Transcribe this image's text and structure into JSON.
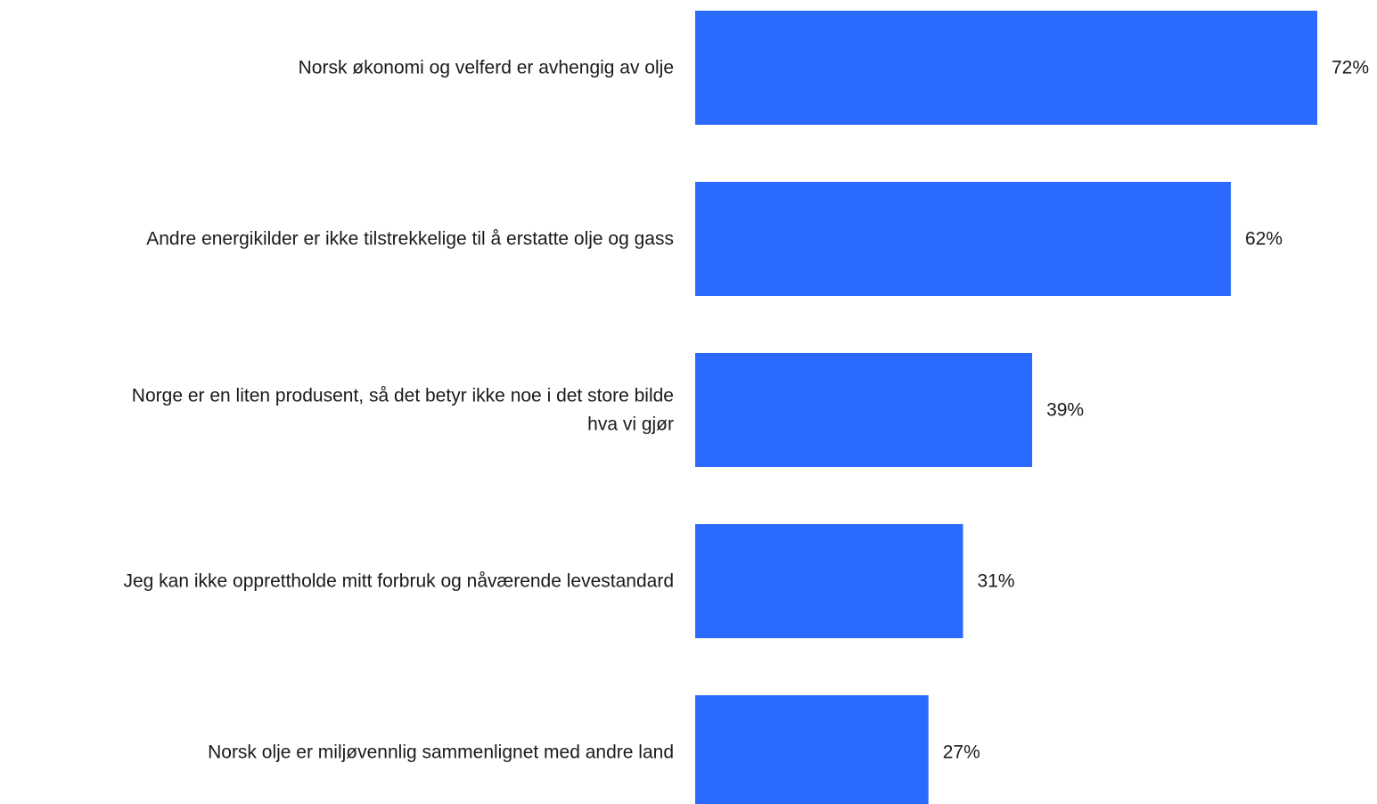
{
  "chart_data": {
    "type": "bar",
    "orientation": "horizontal",
    "categories": [
      [
        "Norsk økonomi og velferd er avhengig av olje"
      ],
      [
        "Andre energikilder er ikke tilstrekkelige til å erstatte olje og gass"
      ],
      [
        "Norge er en liten produsent, så det betyr ikke noe i det store bilde",
        "hva vi gjør"
      ],
      [
        "Jeg kan ikke opprettholde mitt forbruk og nåværende levestandard"
      ],
      [
        "Norsk olje er miljøvennlig sammenlignet med andre land"
      ]
    ],
    "values": [
      72,
      62,
      39,
      31,
      27
    ],
    "value_labels": [
      "72%",
      "62%",
      "39%",
      "31%",
      "27%"
    ],
    "unit": "%",
    "bar_color": "#2b6aff",
    "text_color": "#1a1a1a",
    "grid": false,
    "legend": "none"
  }
}
